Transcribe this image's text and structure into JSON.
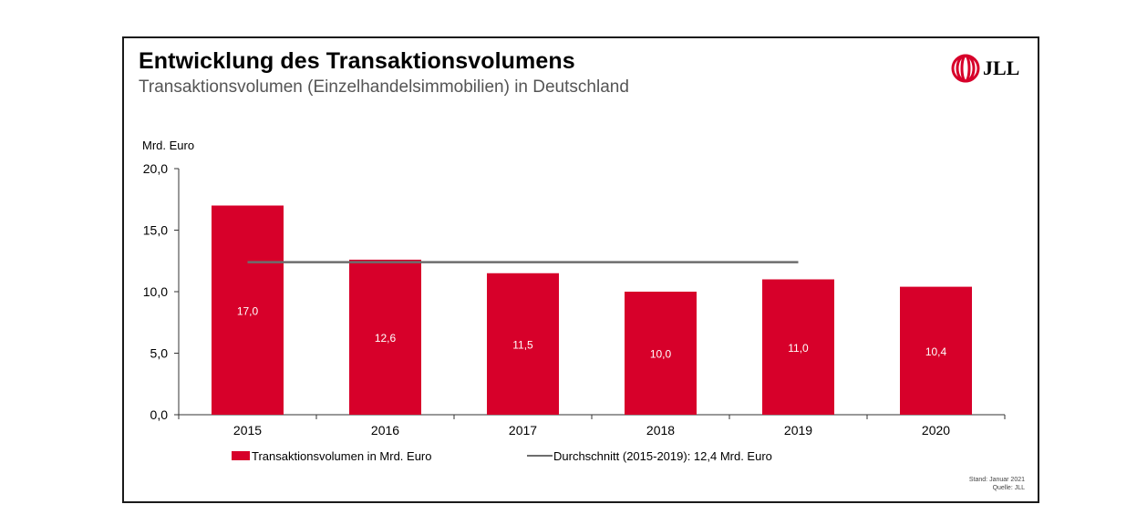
{
  "header": {
    "title": "Entwicklung des Transaktionsvolumens",
    "subtitle": "Transaktionsvolumen (Einzelhandelsimmobilien) in Deutschland",
    "logo_text": "JLL"
  },
  "footer": {
    "stand": "Stand: Januar 2021",
    "quelle": "Quelle: JLL"
  },
  "colors": {
    "bar": "#d7002a",
    "average_line": "#6d6d6d",
    "axis": "#333333",
    "logo_red": "#d7002a"
  },
  "chart_data": {
    "type": "bar",
    "title": "Entwicklung des Transaktionsvolumens",
    "subtitle": "Transaktionsvolumen (Einzelhandelsimmobilien) in Deutschland",
    "ylabel": "Mrd. Euro",
    "ylim": [
      0,
      20
    ],
    "yticks": [
      "0,0",
      "5,0",
      "10,0",
      "15,0",
      "20,0"
    ],
    "categories": [
      "2015",
      "2016",
      "2017",
      "2018",
      "2019",
      "2020"
    ],
    "series": [
      {
        "name": "Transaktionsvolumen in Mrd. Euro",
        "type": "bar",
        "values": [
          17.0,
          12.6,
          11.5,
          10.0,
          11.0,
          10.4
        ],
        "labels": [
          "17,0",
          "12,6",
          "11,5",
          "10,0",
          "11,0",
          "10,4"
        ]
      },
      {
        "name": "Durchschnitt (2015-2019): 12,4 Mrd. Euro",
        "type": "line",
        "value": 12.4,
        "span": [
          "2015",
          "2019"
        ]
      }
    ],
    "legend": "bottom",
    "grid": false
  }
}
